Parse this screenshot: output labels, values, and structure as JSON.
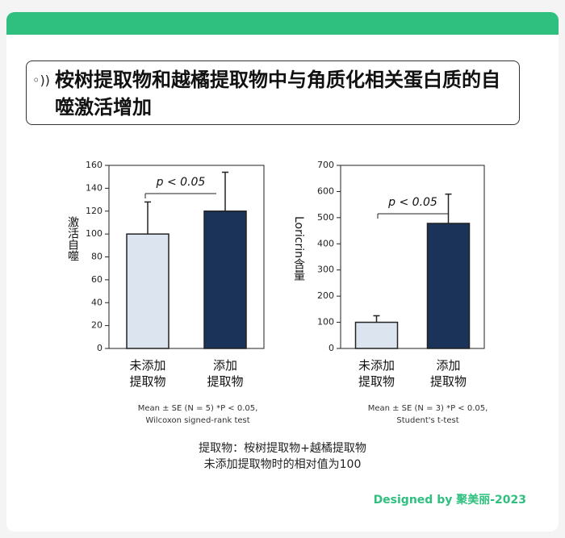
{
  "header": {
    "title": "桉树提取物和越橘提取物中与角质化相关蛋白质的自噬激活增加"
  },
  "chart_data": [
    {
      "type": "bar",
      "ylabel": "激活自噬",
      "categories": [
        "未添加\n提取物",
        "添加\n提取物"
      ],
      "values": [
        100,
        120
      ],
      "errors": [
        28,
        34
      ],
      "colors": [
        "#dce4f0",
        "#1b3358"
      ],
      "ylim": [
        0,
        160
      ],
      "yticks": [
        0,
        20,
        40,
        60,
        80,
        100,
        120,
        140,
        160
      ],
      "significance": "p < 0.05",
      "footnote": "Mean ± SE (N = 5)  *P < 0.05,\nWilcoxon signed-rank test"
    },
    {
      "type": "bar",
      "ylabel": "Loricrin含量",
      "categories": [
        "未添加\n提取物",
        "添加\n提取物"
      ],
      "values": [
        100,
        478
      ],
      "errors": [
        25,
        112
      ],
      "colors": [
        "#dce4f0",
        "#1b3358"
      ],
      "ylim": [
        0,
        700
      ],
      "yticks": [
        0,
        100,
        200,
        300,
        400,
        500,
        600,
        700
      ],
      "significance": "p < 0.05",
      "footnote": "Mean ± SE (N = 3)  *P < 0.05,\nStudent's t-test"
    }
  ],
  "notes": [
    "提取物：桉树提取物+越橘提取物",
    "未添加提取物时的相对值为100"
  ],
  "credit": "Designed by 聚美丽-2023"
}
